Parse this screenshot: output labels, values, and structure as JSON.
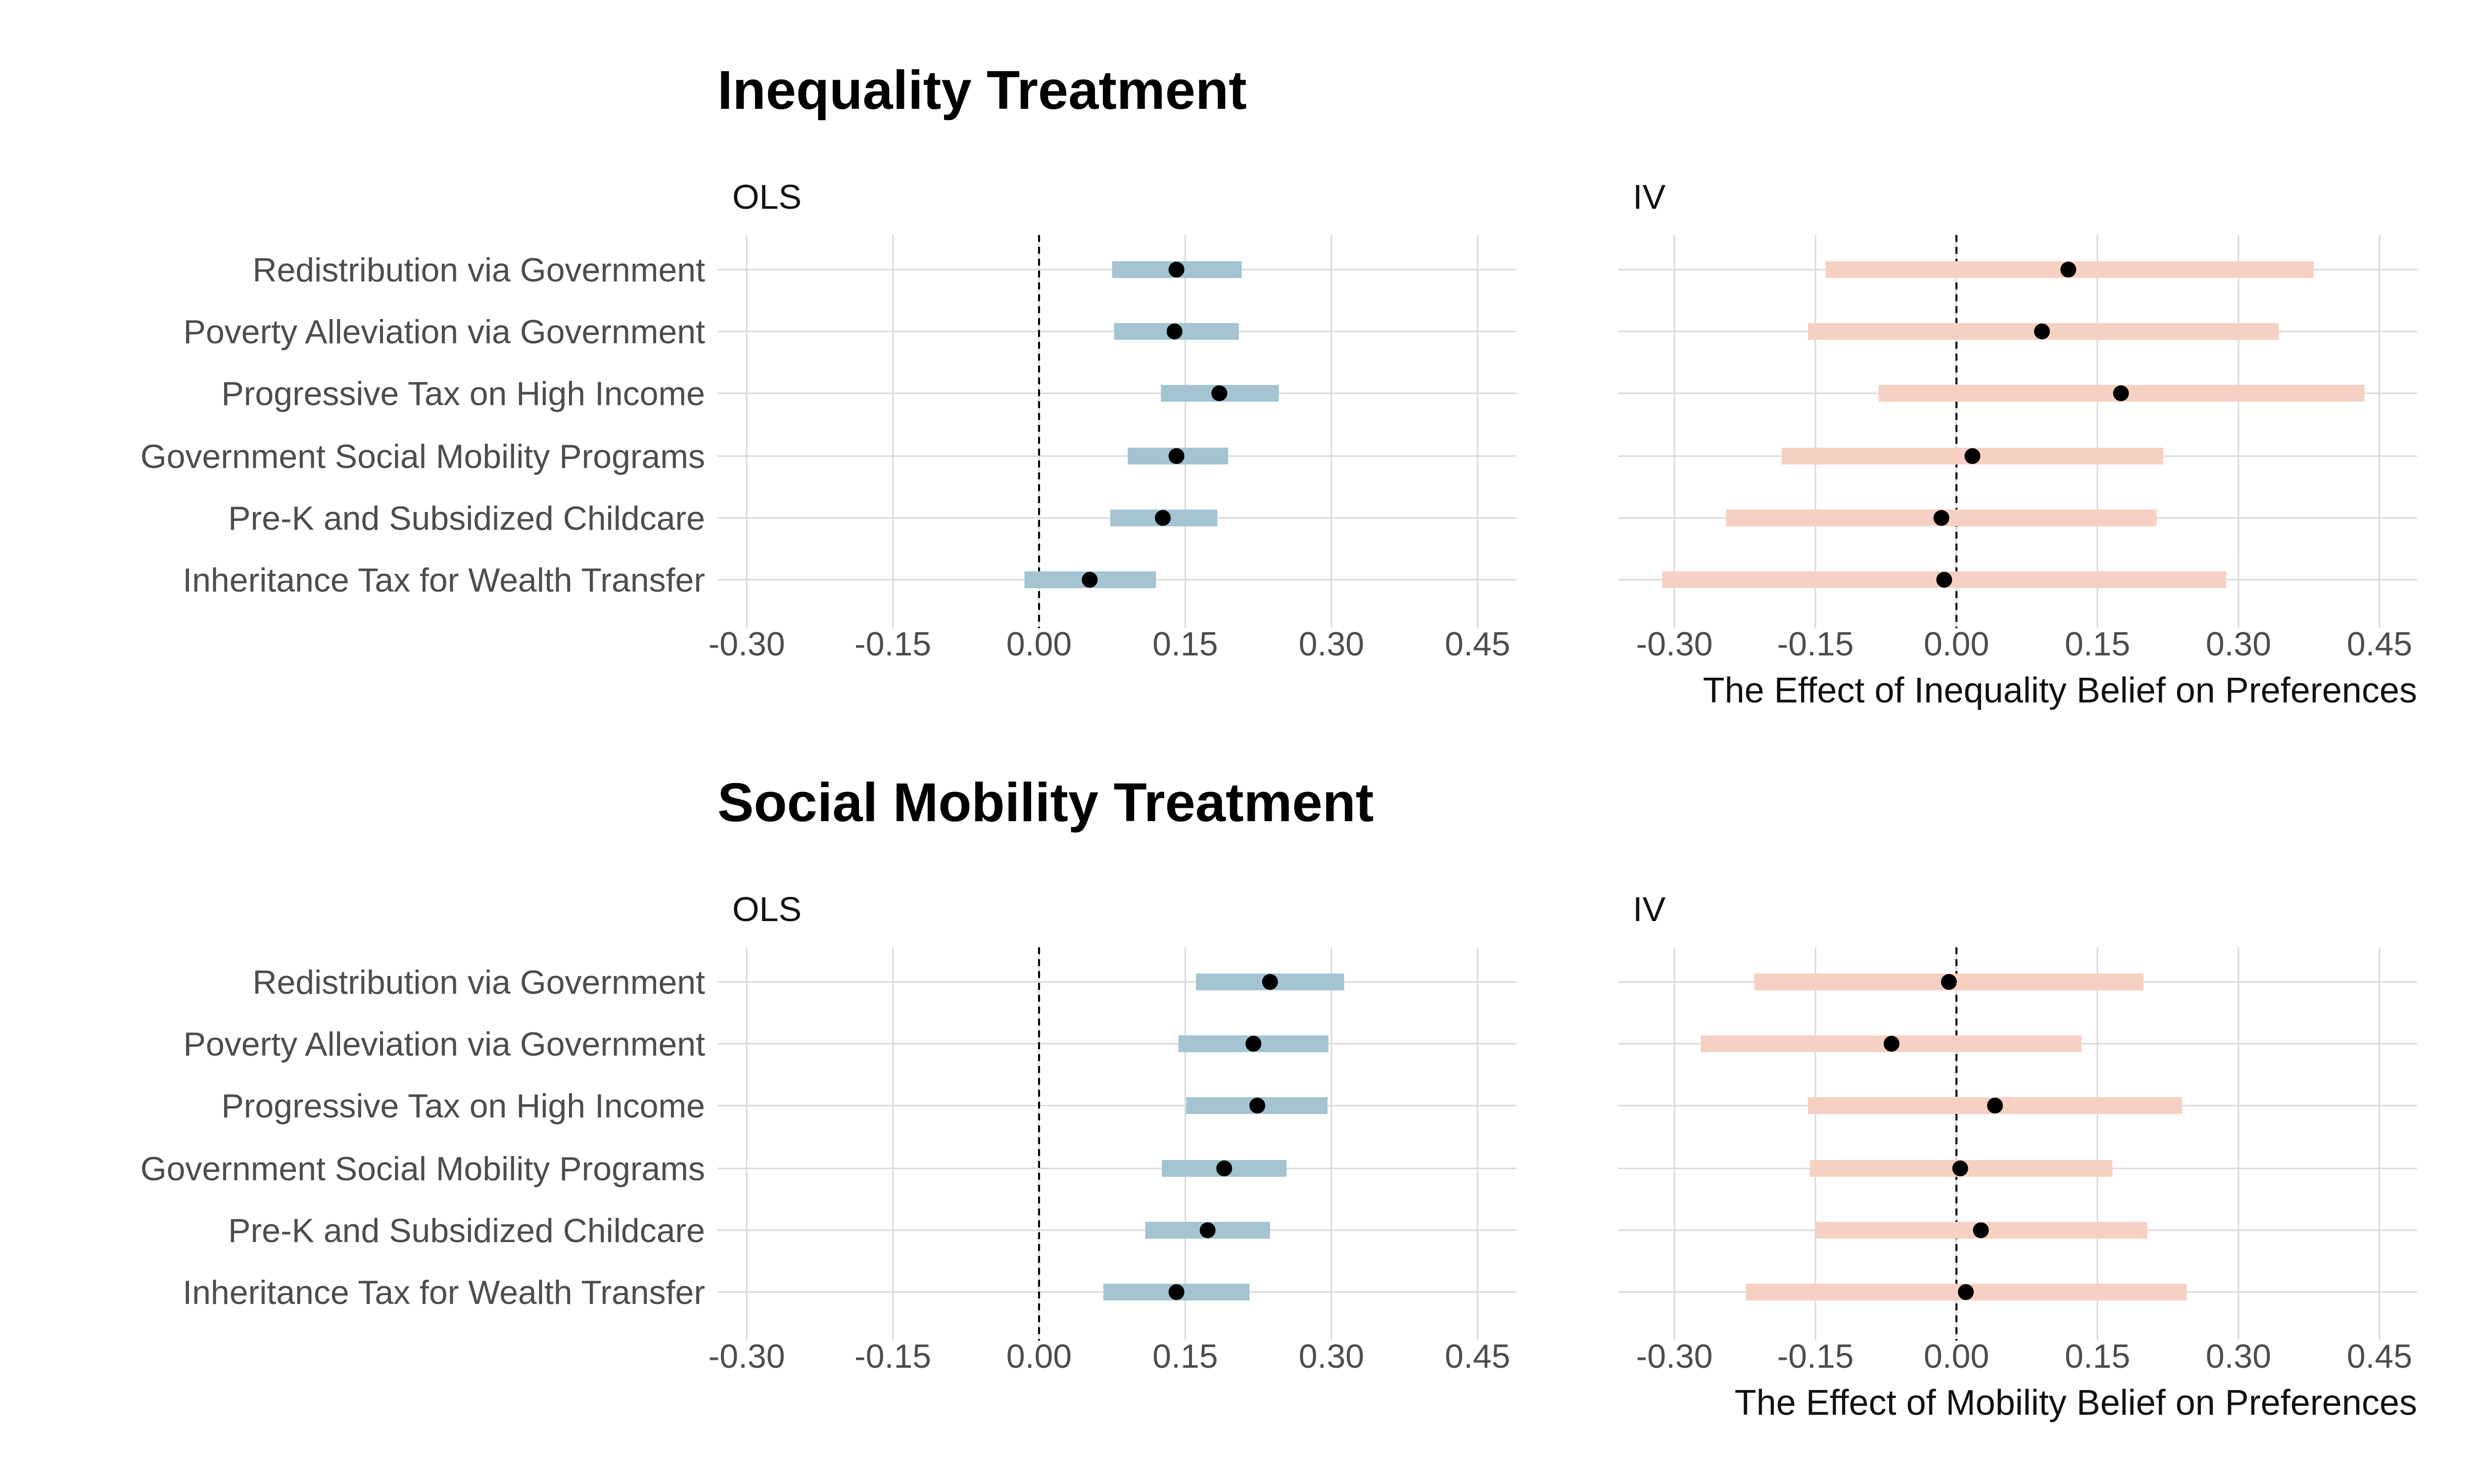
{
  "colors": {
    "ols_bar": "#a3c4d0",
    "iv_bar": "#f6d1c3",
    "point": "#000000",
    "grid": "#d9d9d9"
  },
  "chart_data": [
    {
      "type": "scatter",
      "section_title": "Inequality Treatment",
      "title": "OLS",
      "xlabel": "",
      "xlim": [
        -0.33,
        0.49
      ],
      "xticks": [
        "-0.30",
        "-0.15",
        "0.00",
        "0.15",
        "0.30",
        "0.45"
      ],
      "grid": true,
      "categories": [
        "Redistribution via Government",
        "Poverty Alleviation via Government",
        "Progressive Tax on High Income",
        "Government Social Mobility Programs",
        "Pre-K and Subsidized Childcare",
        "Inheritance Tax for Wealth Transfer"
      ],
      "estimates": [
        0.141,
        0.139,
        0.185,
        0.141,
        0.127,
        0.052
      ],
      "ci_low": [
        0.075,
        0.077,
        0.125,
        0.091,
        0.073,
        -0.015
      ],
      "ci_high": [
        0.208,
        0.205,
        0.246,
        0.194,
        0.183,
        0.12
      ]
    },
    {
      "type": "scatter",
      "title": "IV",
      "xlabel": "The Effect of Inequality Belief on Preferences",
      "xlim": [
        -0.36,
        0.49
      ],
      "xticks": [
        "-0.30",
        "-0.15",
        "0.00",
        "0.15",
        "0.30",
        "0.45"
      ],
      "grid": true,
      "categories": [
        "Redistribution via Government",
        "Poverty Alleviation via Government",
        "Progressive Tax on High Income",
        "Government Social Mobility Programs",
        "Pre-K and Subsidized Childcare",
        "Inheritance Tax for Wealth Transfer"
      ],
      "estimates": [
        0.119,
        0.091,
        0.175,
        0.017,
        -0.016,
        -0.013
      ],
      "ci_low": [
        -0.139,
        -0.158,
        -0.083,
        -0.186,
        -0.245,
        -0.313
      ],
      "ci_high": [
        0.38,
        0.343,
        0.434,
        0.22,
        0.213,
        0.287
      ]
    },
    {
      "type": "scatter",
      "section_title": "Social Mobility Treatment",
      "title": "OLS",
      "xlabel": "",
      "xlim": [
        -0.33,
        0.49
      ],
      "xticks": [
        "-0.30",
        "-0.15",
        "0.00",
        "0.15",
        "0.30",
        "0.45"
      ],
      "grid": true,
      "categories": [
        "Redistribution via Government",
        "Poverty Alleviation via Government",
        "Progressive Tax on High Income",
        "Government Social Mobility Programs",
        "Pre-K and Subsidized Childcare",
        "Inheritance Tax for Wealth Transfer"
      ],
      "estimates": [
        0.237,
        0.22,
        0.224,
        0.19,
        0.173,
        0.141
      ],
      "ci_low": [
        0.161,
        0.143,
        0.151,
        0.126,
        0.109,
        0.066
      ],
      "ci_high": [
        0.313,
        0.297,
        0.296,
        0.254,
        0.237,
        0.216
      ]
    },
    {
      "type": "scatter",
      "title": "IV",
      "xlabel": "The Effect of Mobility Belief on Preferences",
      "xlim": [
        -0.36,
        0.49
      ],
      "xticks": [
        "-0.30",
        "-0.15",
        "0.00",
        "0.15",
        "0.30",
        "0.45"
      ],
      "grid": true,
      "categories": [
        "Redistribution via Government",
        "Poverty Alleviation via Government",
        "Progressive Tax on High Income",
        "Government Social Mobility Programs",
        "Pre-K and Subsidized Childcare",
        "Inheritance Tax for Wealth Transfer"
      ],
      "estimates": [
        -0.008,
        -0.069,
        0.041,
        0.004,
        0.026,
        0.01
      ],
      "ci_low": [
        -0.215,
        -0.272,
        -0.158,
        -0.156,
        -0.15,
        -0.224
      ],
      "ci_high": [
        0.199,
        0.133,
        0.24,
        0.166,
        0.203,
        0.245
      ]
    }
  ]
}
